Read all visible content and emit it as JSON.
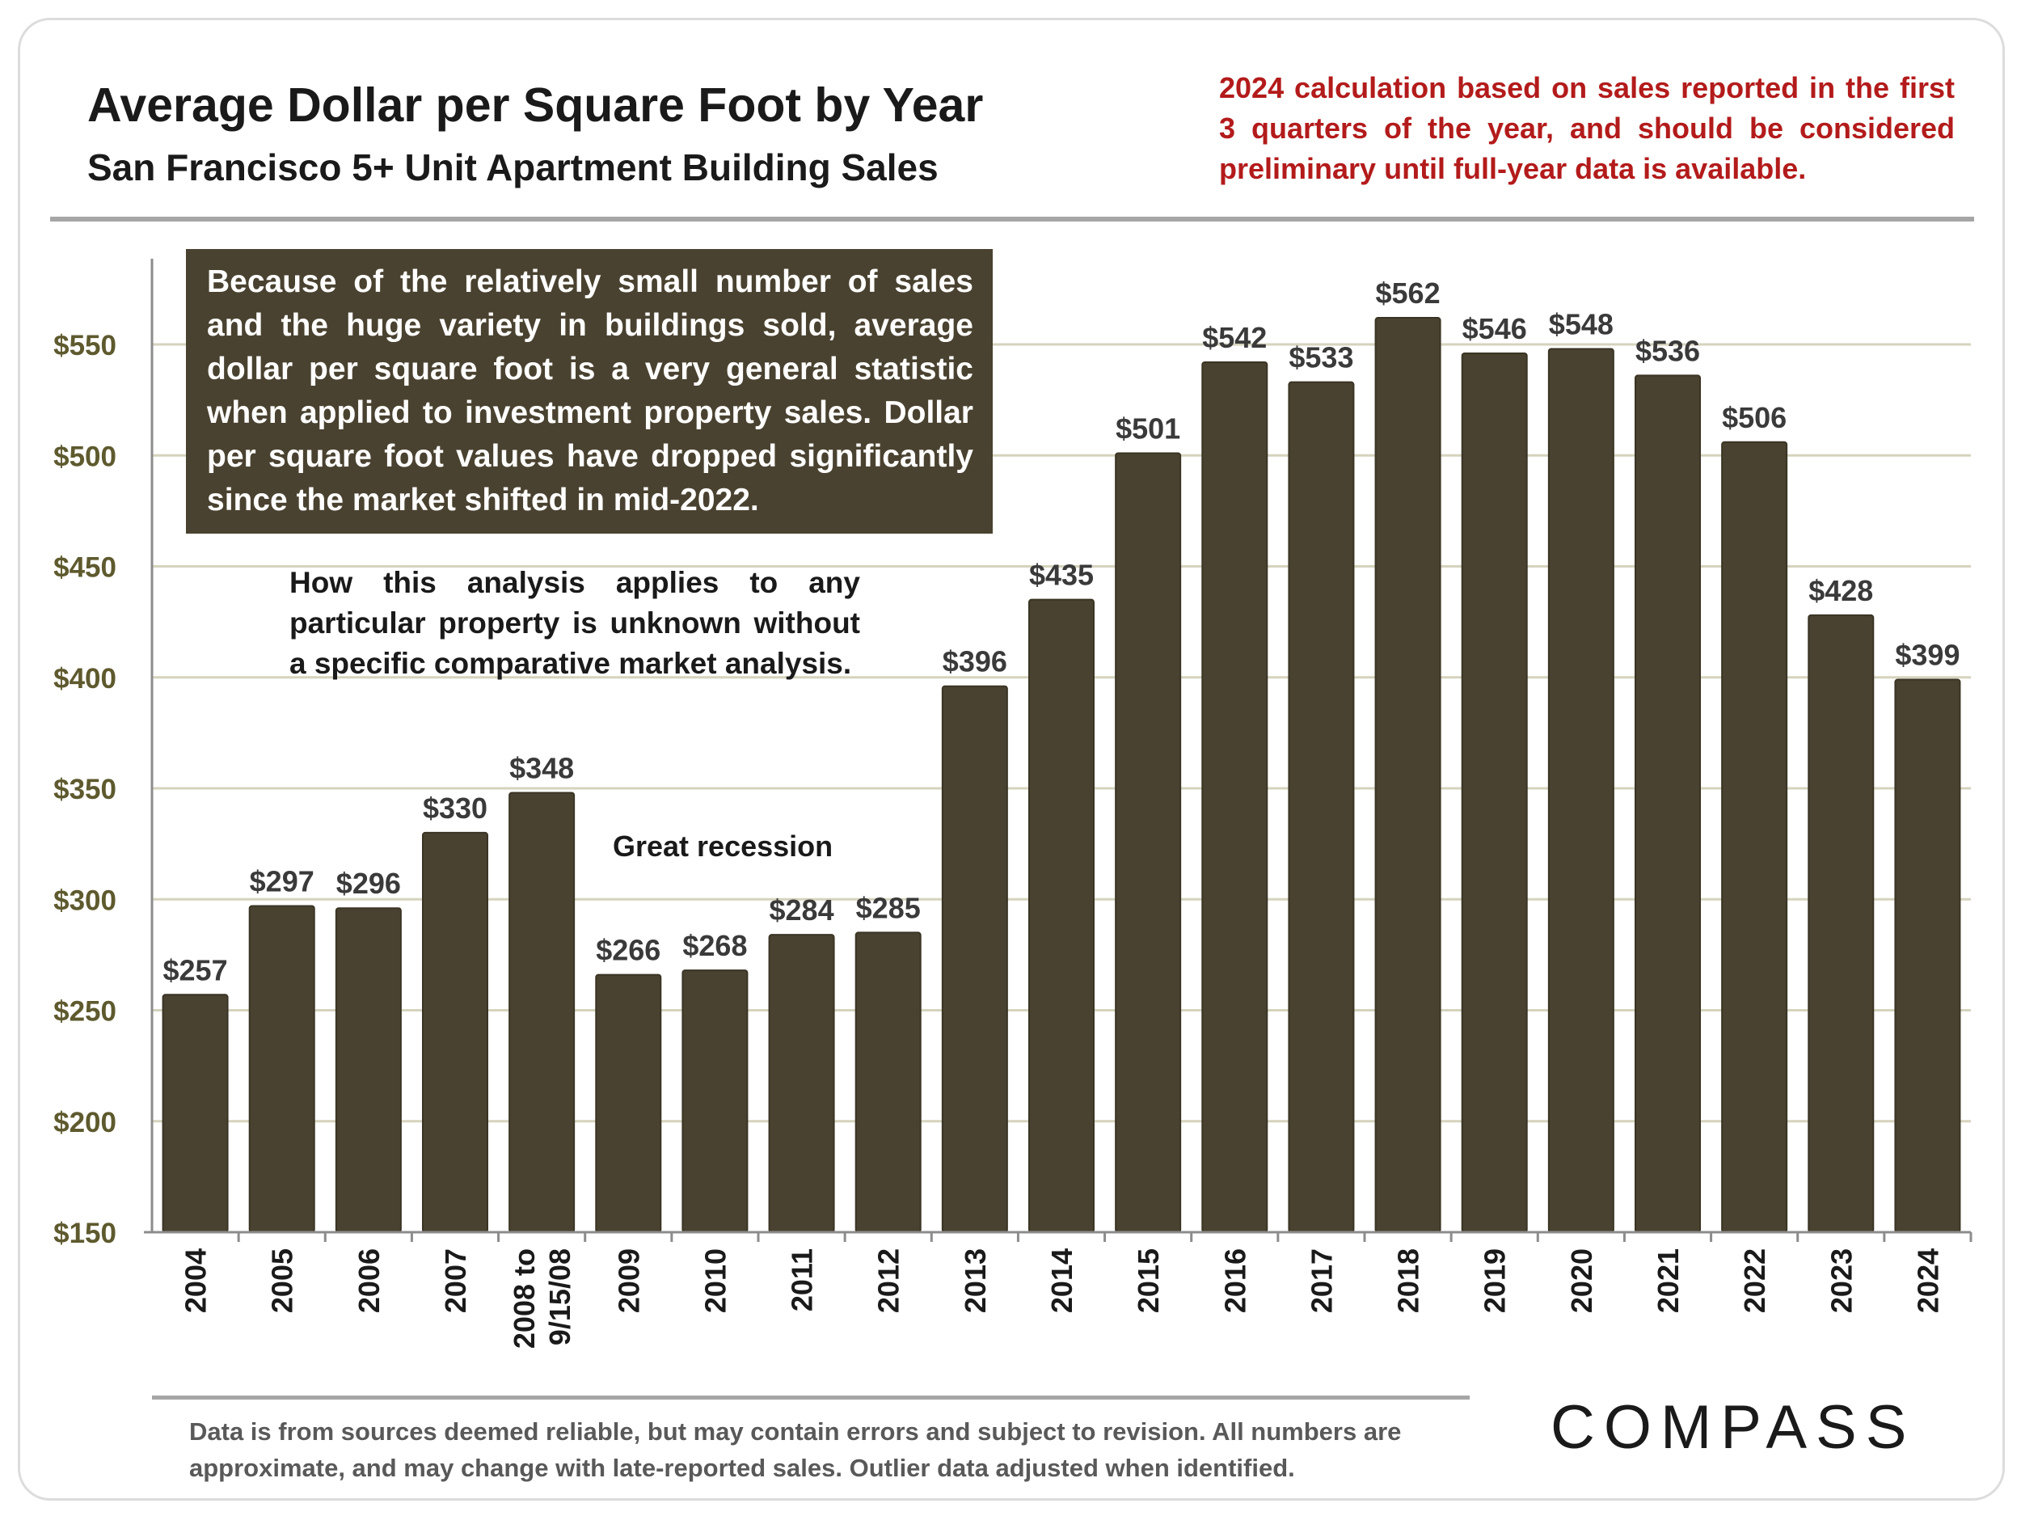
{
  "header": {
    "title": "Average Dollar per Square Foot by Year",
    "subtitle": "San Francisco 5+ Unit Apartment Building Sales",
    "note": "2024 calculation based on sales reported in the first 3 quarters of the year, and should be considered preliminary until full-year data is available."
  },
  "annotations": {
    "box": "Because of the relatively small number of sales and the huge variety in buildings sold, average dollar per square foot is a very general statistic when applied to investment property sales. Dollar per square foot values have dropped significantly since the market shifted in mid-2022.",
    "analysis": "How this analysis applies to any particular property is unknown without a specific comparative market analysis.",
    "recession": "Great recession"
  },
  "footer": {
    "disclaimer": "Data is from sources deemed reliable, but may contain errors and subject to revision. All numbers are approximate, and may change with late-reported sales.  Outlier data adjusted when identified.",
    "logo": "COMPASS"
  },
  "colors": {
    "bar": "#4a4230",
    "gridline": "#d6d3bd",
    "axis_label": "#5e5a2e",
    "note_red": "#b31b1b"
  },
  "chart_data": {
    "type": "bar",
    "title": "Average Dollar per Square Foot by Year",
    "subtitle": "San Francisco 5+ Unit Apartment Building Sales",
    "xlabel": "",
    "ylabel": "",
    "categories": [
      "2004",
      "2005",
      "2006",
      "2007",
      "2008 to 9/15/08",
      "2009",
      "2010",
      "2011",
      "2012",
      "2013",
      "2014",
      "2015",
      "2016",
      "2017",
      "2018",
      "2019",
      "2020",
      "2021",
      "2022",
      "2023",
      "2024"
    ],
    "values": [
      257,
      297,
      296,
      330,
      348,
      266,
      268,
      284,
      285,
      396,
      435,
      501,
      542,
      533,
      562,
      546,
      548,
      536,
      506,
      428,
      399
    ],
    "data_labels": [
      "$257",
      "$297",
      "$296",
      "$330",
      "$348",
      "$266",
      "$268",
      "$284",
      "$285",
      "$396",
      "$435",
      "$501",
      "$542",
      "$533",
      "$562",
      "$546",
      "$548",
      "$536",
      "$506",
      "$428",
      "$399"
    ],
    "ylim": [
      150,
      590
    ],
    "yticks": [
      150,
      200,
      250,
      300,
      350,
      400,
      450,
      500,
      550
    ],
    "ytick_labels": [
      "$150",
      "$200",
      "$250",
      "$300",
      "$350",
      "$400",
      "$450",
      "$500",
      "$550"
    ],
    "grid": true,
    "legend": "none"
  }
}
